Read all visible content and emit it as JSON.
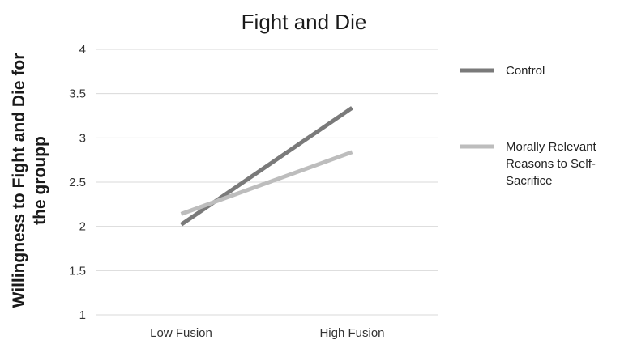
{
  "chart_data": {
    "type": "line",
    "title": "Fight and Die",
    "xlabel": "",
    "ylabel_lines": [
      "Willingness to Fight and Die for",
      "the groupp"
    ],
    "categories": [
      "Low Fusion",
      "High Fusion"
    ],
    "ylim": [
      1,
      4
    ],
    "yticks": [
      "1",
      "1.5",
      "2",
      "2.5",
      "3",
      "3.5",
      "4"
    ],
    "grid": true,
    "legend_position": "right",
    "series": [
      {
        "name": "Control",
        "values": [
          2.02,
          3.34
        ],
        "color": "#7a7a7a"
      },
      {
        "name_lines": [
          "Morally Relevant",
          "Reasons to Self-",
          "Sacrifice"
        ],
        "values": [
          2.14,
          2.84
        ],
        "color": "#bdbdbd"
      }
    ]
  }
}
